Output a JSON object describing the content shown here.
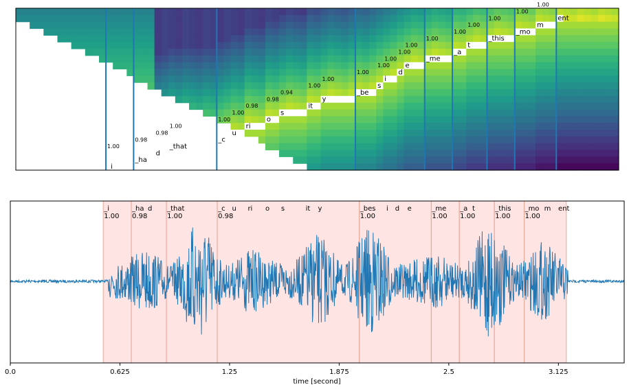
{
  "chart_data": [
    {
      "type": "heatmap",
      "title": "",
      "xlabel": "",
      "ylabel": "",
      "colormap": "viridis",
      "tokens": [
        {
          "label": "_i",
          "score": "1.00"
        },
        {
          "label": "_ha",
          "score": "0.98"
        },
        {
          "label": "d",
          "score": "0.98"
        },
        {
          "label": "_that",
          "score": "1.00"
        },
        {
          "label": "_c",
          "score": "1.00"
        },
        {
          "label": "u",
          "score": "1.00"
        },
        {
          "label": "ri",
          "score": "0.98"
        },
        {
          "label": "o",
          "score": "0.98"
        },
        {
          "label": "s",
          "score": "0.94"
        },
        {
          "label": "it",
          "score": "1.00"
        },
        {
          "label": "y",
          "score": "1.00"
        },
        {
          "label": "_be",
          "score": "1.00"
        },
        {
          "label": "s",
          "score": "1.00"
        },
        {
          "label": "i",
          "score": "1.00"
        },
        {
          "label": "d",
          "score": "1.00"
        },
        {
          "label": "e",
          "score": "1.00"
        },
        {
          "label": "_me",
          "score": "1.00"
        },
        {
          "label": "_a",
          "score": "1.00"
        },
        {
          "label": "t",
          "score": "1.00"
        },
        {
          "label": "_this",
          "score": "1.00"
        },
        {
          "label": "_mo",
          "score": "1.00"
        },
        {
          "label": "m",
          "score": "1.00"
        },
        {
          "label": "ent",
          "score": "1.00"
        }
      ]
    },
    {
      "type": "line",
      "title": "",
      "xlabel": "time [second]",
      "ylabel": "",
      "xlim": [
        0,
        3.5
      ],
      "x_ticks": [
        "0.0",
        "0.625",
        "1.25",
        "1.875",
        "2.5",
        "3.125"
      ],
      "x_tick_values": [
        0,
        0.625,
        1.25,
        1.875,
        2.5,
        3.125
      ],
      "series_color": "#1f77b4",
      "segment_color": "#ffb3b3",
      "segment_edge_color": "#e8a898",
      "word_segments": [
        {
          "start": 0.53,
          "end": 0.69,
          "score": "1.00",
          "labels": [
            {
              "t": "_i",
              "x": 0.53
            }
          ]
        },
        {
          "start": 0.69,
          "end": 0.89,
          "score": "0.98",
          "labels": [
            {
              "t": "_ha",
              "x": 0.69
            },
            {
              "t": "d",
              "x": 0.78
            }
          ]
        },
        {
          "start": 0.89,
          "end": 1.18,
          "score": "1.00",
          "labels": [
            {
              "t": "_that",
              "x": 0.89
            }
          ]
        },
        {
          "start": 1.18,
          "end": 1.99,
          "score": "0.98",
          "labels": [
            {
              "t": "_c",
              "x": 1.18
            },
            {
              "t": "u",
              "x": 1.26
            },
            {
              "t": "ri",
              "x": 1.35
            },
            {
              "t": "o",
              "x": 1.45
            },
            {
              "t": "s",
              "x": 1.54
            },
            {
              "t": "it",
              "x": 1.68
            },
            {
              "t": "y",
              "x": 1.75
            }
          ]
        },
        {
          "start": 1.99,
          "end": 2.4,
          "score": "1.00",
          "labels": [
            {
              "t": "_bes",
              "x": 1.99
            },
            {
              "t": "i",
              "x": 2.14
            },
            {
              "t": "d",
              "x": 2.19
            },
            {
              "t": "e",
              "x": 2.26
            }
          ]
        },
        {
          "start": 2.4,
          "end": 2.56,
          "score": "1.00",
          "labels": [
            {
              "t": "_me",
              "x": 2.4
            }
          ]
        },
        {
          "start": 2.56,
          "end": 2.76,
          "score": "1.00",
          "labels": [
            {
              "t": "_a",
              "x": 2.56
            },
            {
              "t": "t",
              "x": 2.63
            }
          ]
        },
        {
          "start": 2.76,
          "end": 2.93,
          "score": "1.00",
          "labels": [
            {
              "t": "_this",
              "x": 2.76
            }
          ]
        },
        {
          "start": 2.93,
          "end": 3.17,
          "score": "1.00",
          "labels": [
            {
              "t": "_mo",
              "x": 2.93
            },
            {
              "t": "m",
              "x": 3.04
            },
            {
              "t": "ent",
              "x": 3.12
            }
          ]
        }
      ]
    }
  ]
}
